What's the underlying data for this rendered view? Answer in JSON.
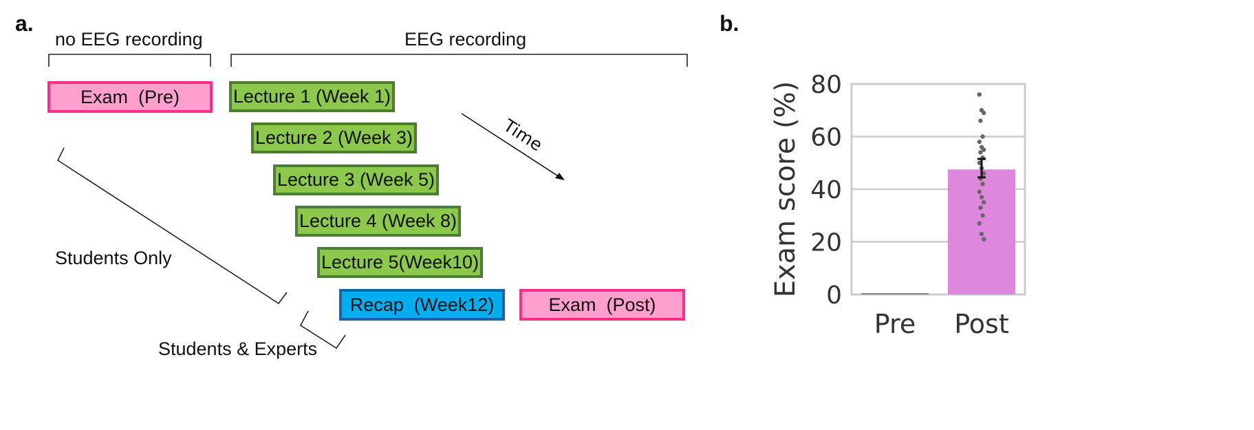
{
  "panel_a": {
    "label": "a.",
    "headers": {
      "no_eeg": "no EEG recording",
      "eeg": "EEG recording"
    },
    "boxes": {
      "exam_pre": "Exam  (Pre)",
      "lecture1": "Lecture 1 (Week 1)",
      "lecture2": "Lecture 2 (Week 3)",
      "lecture3": "Lecture 3 (Week 5)",
      "lecture4": "Lecture 4 (Week 8)",
      "lecture5": "Lecture 5(Week10)",
      "recap": "Recap  (Week12)",
      "exam_post": "Exam  (Post)"
    },
    "time_label": "Time",
    "students_only": "Students Only",
    "students_experts": "Students & Experts",
    "colors": {
      "exam_fill": "#ff9fce",
      "exam_border": "#ff2d87",
      "lecture_fill": "#8cc84b",
      "lecture_border": "#4b7f2f",
      "recap_fill": "#00aeef",
      "recap_border": "#1565a8"
    }
  },
  "panel_b": {
    "label": "b.",
    "chart_data": {
      "type": "bar",
      "categories": [
        "Pre",
        "Post"
      ],
      "values": [
        0,
        47.5
      ],
      "error_bars": [
        null,
        [
          44.5,
          51.5
        ]
      ],
      "points": [
        {
          "category": "Post",
          "values": [
            76,
            70,
            69,
            66,
            60,
            58,
            56,
            55,
            54,
            52,
            50,
            48,
            46,
            44,
            42,
            39,
            37,
            35,
            33,
            30,
            27,
            23,
            21
          ]
        }
      ],
      "ylabel": "Exam score  (%)",
      "yticks": [
        0,
        20,
        40,
        60,
        80
      ],
      "ylim": [
        0,
        80
      ],
      "grid": true,
      "bar_color": "#dd88dd",
      "point_color": "#666666"
    }
  }
}
